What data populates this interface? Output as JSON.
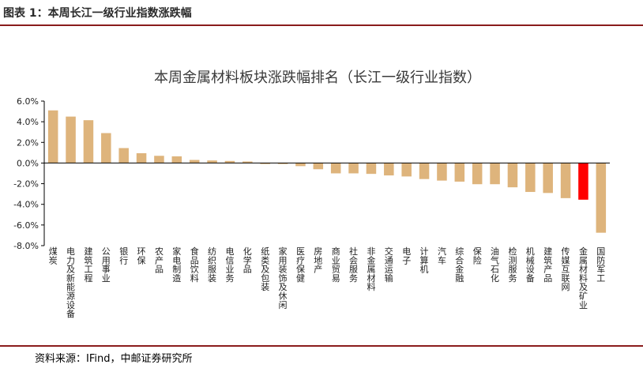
{
  "figure": {
    "title": "图表 1：本周长江一级行业指数涨跌幅",
    "source": "资料来源：IFind，中邮证券研究所"
  },
  "colors": {
    "bar": "#deb47c",
    "highlight": "#ff0000",
    "rule": "#8a1c1c",
    "axis": "#000000"
  },
  "chart_data": {
    "type": "bar",
    "title": "本周金属材料板块涨跌幅排名（长江一级行业指数）",
    "xlabel": "",
    "ylabel": "",
    "ylim": [
      -8.0,
      6.0
    ],
    "yticks": [
      "6.0%",
      "4.0%",
      "2.0%",
      "0.0%",
      "-2.0%",
      "-4.0%",
      "-6.0%",
      "-8.0%"
    ],
    "grid": false,
    "legend": "none",
    "highlight_category": "金属材料及矿业",
    "categories": [
      "煤炭",
      "电力及新能源设备",
      "建筑工程",
      "公用事业",
      "银行",
      "环保",
      "农产品",
      "家电制造",
      "食品饮料",
      "纺织服装",
      "电信业务",
      "化学品",
      "纸类及包装",
      "家用装饰及休闲",
      "医疗保健",
      "房地产",
      "商业贸易",
      "社会服务",
      "非金属材料",
      "交通运输",
      "电子",
      "计算机",
      "汽车",
      "综合金融",
      "保险",
      "油气石化",
      "检测服务",
      "机械设备",
      "建筑产品",
      "传媒互联网",
      "金属材料及矿业",
      "国防军工"
    ],
    "values": [
      5.1,
      4.5,
      4.15,
      2.9,
      1.45,
      0.95,
      0.7,
      0.65,
      0.3,
      0.25,
      0.2,
      0.15,
      -0.1,
      -0.1,
      -0.3,
      -0.6,
      -1.0,
      -1.0,
      -1.05,
      -1.2,
      -1.3,
      -1.55,
      -1.7,
      -1.8,
      -2.05,
      -2.05,
      -2.35,
      -2.8,
      -2.9,
      -3.4,
      -3.55,
      -6.75
    ]
  }
}
